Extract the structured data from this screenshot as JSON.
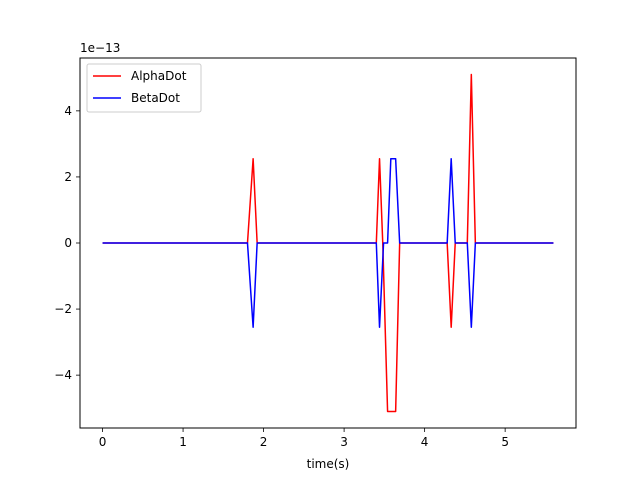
{
  "chart_data": {
    "type": "line",
    "title": "",
    "xlabel": "time(s)",
    "ylabel": "",
    "y_offset_label": "1e−13",
    "y_scale": 1e-13,
    "xlim": [
      -0.28,
      5.88
    ],
    "ylim": [
      -5.6,
      5.6
    ],
    "x_ticks": [
      0,
      1,
      2,
      3,
      4,
      5
    ],
    "x_tick_labels": [
      "0",
      "1",
      "2",
      "3",
      "4",
      "5"
    ],
    "y_ticks": [
      -4,
      -2,
      0,
      2,
      4
    ],
    "y_tick_labels": [
      "−4",
      "−2",
      "0",
      "2",
      "4"
    ],
    "grid": false,
    "legend_position": "top-left",
    "series": [
      {
        "name": "AlphaDot",
        "color": "#ff0000",
        "x": [
          0,
          1.8,
          1.87,
          1.92,
          3.4,
          3.44,
          3.48,
          3.54,
          3.6,
          3.64,
          3.69,
          4.28,
          4.33,
          4.38,
          4.53,
          4.58,
          4.63,
          5.6
        ],
        "y": [
          0,
          0,
          2.55,
          0,
          0,
          2.55,
          0,
          -5.1,
          -5.1,
          -5.1,
          0,
          0,
          -2.55,
          0,
          0,
          5.1,
          0,
          0
        ]
      },
      {
        "name": "BetaDot",
        "color": "#0000ff",
        "x": [
          0,
          1.8,
          1.87,
          1.92,
          3.4,
          3.44,
          3.49,
          3.54,
          3.58,
          3.64,
          3.69,
          4.28,
          4.33,
          4.38,
          4.53,
          4.58,
          4.63,
          5.6
        ],
        "y": [
          0,
          0,
          -2.55,
          0,
          0,
          -2.55,
          0,
          0,
          2.55,
          2.55,
          0,
          0,
          2.55,
          0,
          0,
          -2.55,
          0,
          0
        ]
      }
    ]
  }
}
